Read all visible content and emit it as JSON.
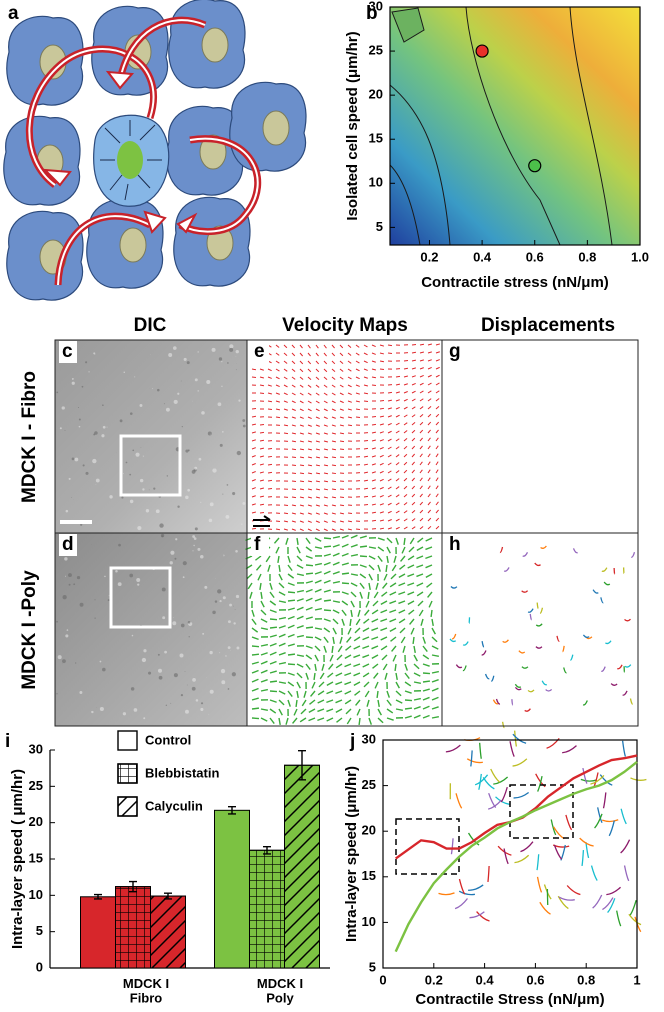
{
  "panel_letters": [
    "a",
    "b",
    "c",
    "d",
    "e",
    "f",
    "g",
    "h",
    "i",
    "j"
  ],
  "columns": [
    "DIC",
    "Velocity Maps",
    "Displacements"
  ],
  "rows": [
    "MDCK I - Fibro",
    "MDCK I -Poly"
  ],
  "chart_data": [
    {
      "type": "scatter",
      "xlabel": "Contractile stress (nN/μm)",
      "ylabel": "Isolated cell speed (μm/hr)",
      "x": [
        0.4,
        0.6
      ],
      "values": [
        25,
        12
      ],
      "colors": [
        "#e8302a",
        "#4cbf4a"
      ],
      "xlim": [
        0.05,
        1.0
      ],
      "xticks": [
        0.2,
        0.4,
        0.6,
        0.8,
        {
          "value": 1,
          "label": "1.0"
        }
      ],
      "ylim": [
        3,
        30
      ],
      "yticks": [
        5,
        10,
        15,
        20,
        25,
        30
      ]
    },
    {
      "type": "bar",
      "ylabel": "Intra-layer speed ( μm/hr)",
      "categories": [
        "MDCK I\nFibro",
        "MDCK I\nPoly"
      ],
      "category_colors": [
        "#d7262b",
        "#7cc242"
      ],
      "series": [
        {
          "name": "Control",
          "pattern": "none",
          "values": [
            9.8,
            21.7
          ],
          "errors": [
            0.3,
            0.5
          ]
        },
        {
          "name": "Blebbistatin",
          "pattern": "grid",
          "values": [
            11.2,
            16.2
          ],
          "errors": [
            0.7,
            0.5
          ]
        },
        {
          "name": "Calyculin",
          "pattern": "diagonal",
          "values": [
            9.9,
            27.9
          ],
          "errors": [
            0.4,
            2.0
          ]
        }
      ],
      "ylim": [
        0,
        30
      ],
      "yticks": [
        0,
        5,
        10,
        15,
        20,
        25,
        30
      ]
    },
    {
      "type": "line",
      "xlabel": "Contractile Stress (nN/μm)",
      "ylabel": "Intra-layer speed (μm/hr)",
      "x": [
        0.05,
        0.1,
        0.15,
        0.2,
        0.25,
        0.3,
        0.35,
        0.4,
        0.45,
        0.5,
        0.55,
        0.6,
        0.65,
        0.7,
        0.75,
        0.8,
        0.85,
        0.9,
        0.95,
        1.0
      ],
      "series": [
        {
          "color": "#d7262b",
          "values": [
            17,
            18,
            19,
            18.8,
            18.1,
            18.1,
            18.8,
            19.8,
            20.7,
            21,
            21.5,
            22.5,
            23.8,
            24.8,
            25.8,
            26.5,
            27.2,
            27.8,
            28,
            28.3
          ]
        },
        {
          "color": "#7cc242",
          "values": [
            6.8,
            9.8,
            12.2,
            14.3,
            15.8,
            17.2,
            18.4,
            19.3,
            20.3,
            21,
            21.6,
            22.3,
            22.9,
            23.5,
            24.1,
            24.6,
            25,
            25.6,
            26.5,
            27.6
          ]
        }
      ],
      "xlim": [
        0,
        1
      ],
      "xticks": [
        0,
        0.2,
        0.4,
        0.6,
        0.8,
        1
      ],
      "ylim": [
        5,
        30
      ],
      "yticks": [
        5,
        10,
        15,
        20,
        25,
        30
      ]
    }
  ]
}
